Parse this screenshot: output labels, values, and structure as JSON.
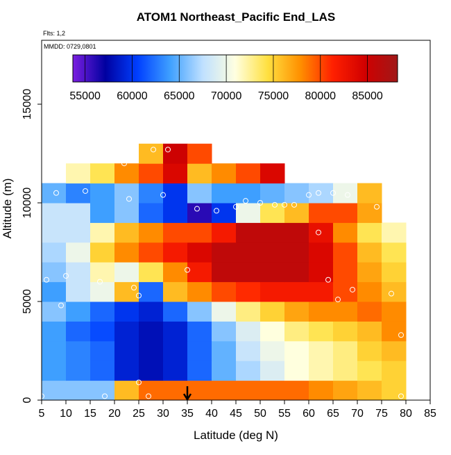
{
  "chart_data": {
    "type": "heatmap",
    "title": "ATOM1 Northeast_Pacific End_LAS",
    "note1": "Flts: 1,2",
    "note2": "MMDD: 0729,0801",
    "x_label": "Latitude (deg N)",
    "y_label": "Altitude (m)",
    "xlim": [
      5,
      85
    ],
    "ylim": [
      0,
      18240
    ],
    "xticks": [
      5,
      10,
      15,
      20,
      25,
      30,
      35,
      40,
      45,
      50,
      55,
      60,
      65,
      70,
      75,
      80,
      85
    ],
    "yticks": [
      0,
      5000,
      10000,
      15000
    ],
    "x_bins": [
      5,
      10,
      15,
      20,
      25,
      30,
      35,
      40,
      45,
      50,
      55,
      60,
      65,
      70,
      75,
      80
    ],
    "y_bins": [
      0,
      1000,
      2000,
      3000,
      4000,
      5000,
      6000,
      7000,
      8000,
      9000,
      10000,
      11000,
      12000,
      13000
    ],
    "z": [
      [
        66000,
        66000,
        66000,
        76000,
        79000,
        79000,
        79000,
        79000,
        79000,
        79000,
        79000,
        78000,
        77000,
        76000,
        75000
      ],
      [
        64000,
        63000,
        62000,
        59000,
        58000,
        59000,
        62000,
        65000,
        67000,
        69000,
        71000,
        72000,
        73000,
        74000,
        75000
      ],
      [
        64000,
        63000,
        62000,
        59000,
        58000,
        59000,
        62000,
        65000,
        68000,
        70000,
        71000,
        72000,
        73000,
        75000,
        76000
      ],
      [
        64000,
        62000,
        61000,
        59000,
        58000,
        59000,
        62000,
        66000,
        69000,
        71000,
        73000,
        74000,
        75000,
        76000,
        78000
      ],
      [
        66000,
        64000,
        62000,
        60000,
        59000,
        62000,
        66000,
        70000,
        73000,
        75000,
        77000,
        78000,
        78000,
        79000,
        78000
      ],
      [
        64000,
        68000,
        70000,
        76000,
        62000,
        76000,
        78000,
        80000,
        81000,
        82000,
        82000,
        82000,
        80000,
        78000,
        76000
      ],
      [
        66000,
        68000,
        72000,
        70000,
        74000,
        78000,
        82000,
        86000,
        86000,
        86000,
        86000,
        84000,
        80000,
        77000,
        75000
      ],
      [
        67000,
        70000,
        75000,
        78000,
        80000,
        82000,
        84000,
        86000,
        86000,
        86000,
        86000,
        84000,
        80000,
        76000,
        74000
      ],
      [
        68000,
        68000,
        72000,
        76000,
        78000,
        80000,
        80000,
        82000,
        86000,
        86000,
        86000,
        83000,
        78000,
        74000,
        72000
      ],
      [
        68000,
        68000,
        64000,
        66000,
        62000,
        60000,
        56000,
        60000,
        70000,
        74000,
        76000,
        80000,
        80000,
        77000,
        null
      ],
      [
        65000,
        63000,
        64000,
        66000,
        63000,
        60000,
        66000,
        64000,
        64000,
        65000,
        66000,
        67000,
        70000,
        76000,
        null
      ],
      [
        null,
        72000,
        74000,
        78000,
        80000,
        84000,
        76000,
        78000,
        80000,
        84000,
        null,
        null,
        null,
        null,
        null
      ],
      [
        null,
        null,
        null,
        null,
        76000,
        85000,
        80000,
        null,
        null,
        null,
        null,
        null,
        null,
        null,
        null
      ]
    ],
    "colorbar_lim": [
      53700,
      88200
    ],
    "colorbar_ticks": [
      55000,
      60000,
      65000,
      70000,
      75000,
      80000,
      85000
    ],
    "colors": [
      "#7b1fe0",
      "#0000a0",
      "#0040ff",
      "#3fa0ff",
      "#bfe0ff",
      "#ffffe0",
      "#ffe040",
      "#ff9000",
      "#ff2000",
      "#d00000",
      "#a01818"
    ],
    "points": {
      "x": [
        6,
        10,
        17,
        24,
        25,
        35,
        62,
        64,
        66,
        69,
        77,
        79,
        25,
        18,
        27,
        30,
        37,
        41,
        45,
        47,
        50,
        53,
        55,
        57,
        60,
        62,
        65,
        68,
        74,
        76,
        28,
        31,
        22,
        8,
        14,
        23,
        9,
        5,
        79
      ],
      "y": [
        6100,
        6300,
        6000,
        5700,
        5300,
        6600,
        8500,
        6100,
        5100,
        5600,
        5400,
        3300,
        900,
        200,
        200,
        10400,
        9700,
        9600,
        9800,
        10100,
        10000,
        9900,
        9900,
        9900,
        10400,
        10500,
        10500,
        10400,
        9800,
        9700,
        12700,
        12700,
        12000,
        10500,
        10600,
        10200,
        4800,
        200,
        200
      ]
    },
    "marker_lat": 35
  }
}
